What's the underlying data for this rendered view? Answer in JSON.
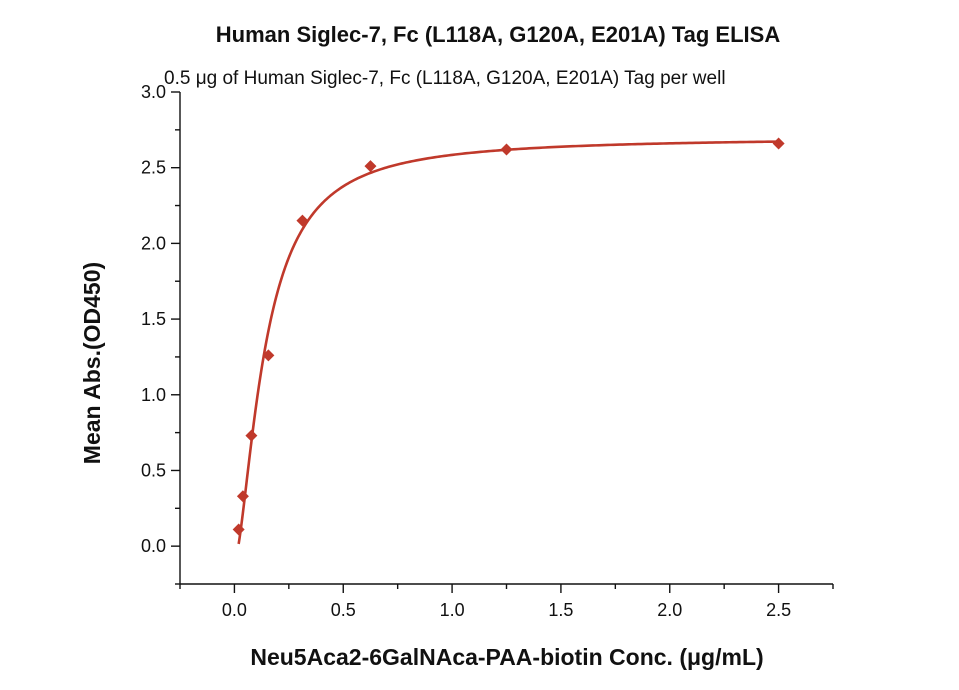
{
  "chart_data": {
    "type": "scatter",
    "title": "Human Siglec-7, Fc (L118A, G120A, E201A) Tag ELISA",
    "subtitle": "0.5 μg of Human Siglec-7, Fc (L118A, G120A, E201A) Tag per well",
    "xlabel": "Neu5Aca2-6GalNAca-PAA-biotin Conc. (μg/mL)",
    "ylabel": "Mean Abs.(OD450)",
    "xlim": [
      -0.25,
      2.75
    ],
    "ylim": [
      -0.25,
      3.0
    ],
    "x_ticks": [
      0.0,
      0.5,
      1.0,
      1.5,
      2.0,
      2.5
    ],
    "x_tick_labels": [
      "0.0",
      "0.5",
      "1.0",
      "1.5",
      "2.0",
      "2.5"
    ],
    "y_ticks": [
      0.0,
      0.5,
      1.0,
      1.5,
      2.0,
      2.5,
      3.0
    ],
    "y_tick_labels": [
      "0.0",
      "0.5",
      "1.0",
      "1.5",
      "2.0",
      "2.5",
      "3.0"
    ],
    "grid": false,
    "legend": "none",
    "marker": "diamond",
    "color": "#c0392b",
    "points": [
      {
        "x": 0.0195,
        "y": 0.11
      },
      {
        "x": 0.039,
        "y": 0.33
      },
      {
        "x": 0.078,
        "y": 0.73
      },
      {
        "x": 0.156,
        "y": 1.26
      },
      {
        "x": 0.3125,
        "y": 2.15
      },
      {
        "x": 0.625,
        "y": 2.51
      },
      {
        "x": 1.25,
        "y": 2.62
      },
      {
        "x": 2.5,
        "y": 2.66
      }
    ],
    "fit_curve": {
      "type": "4PL",
      "bottom": -0.1,
      "top": 2.7,
      "ec50": 0.14,
      "hill": 1.6
    }
  }
}
